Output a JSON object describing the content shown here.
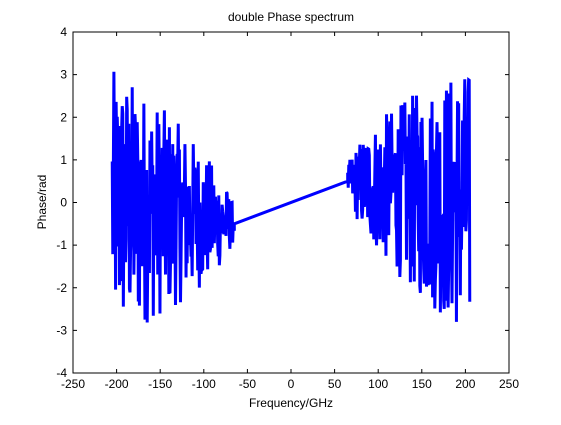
{
  "chart_data": {
    "type": "line",
    "title": "double Phase spectrum",
    "xlabel": "Frequency/GHz",
    "ylabel": "Phase/rad",
    "xlim": [
      -250,
      250
    ],
    "ylim": [
      -4,
      4
    ],
    "xticks": [
      "-250",
      "-200",
      "-150",
      "-100",
      "-50",
      "0",
      "50",
      "100",
      "150",
      "200",
      "250"
    ],
    "yticks": [
      "-4",
      "-3",
      "-2",
      "-1",
      "0",
      "1",
      "2",
      "3",
      "4"
    ],
    "grid": false,
    "legend": "none",
    "series": [
      {
        "color": "#0000ff",
        "linear_segment": {
          "x": [
            -65,
            65
          ],
          "y": [
            -0.5,
            0.5
          ]
        },
        "noisy_regions": [
          {
            "x_range": [
              -205,
              -65
            ],
            "amplitude_range": [
              -3.1,
              3.1
            ]
          },
          {
            "x_range": [
              65,
              205
            ],
            "amplitude_range": [
              -3.1,
              3.1
            ]
          }
        ]
      }
    ]
  }
}
